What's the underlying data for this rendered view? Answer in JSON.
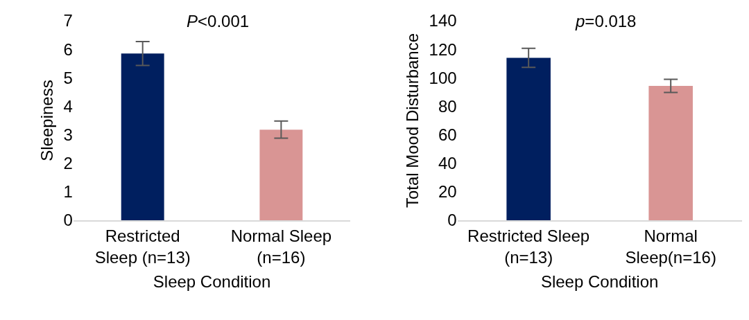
{
  "chart_data": [
    {
      "type": "bar",
      "xlabel": "Sleep Condition",
      "ylabel": "Sleepiness",
      "annotations": [
        "P<0.001"
      ],
      "categories": [
        "Restricted\nSleep (n=13)",
        "Normal Sleep\n(n=16)"
      ],
      "values": [
        5.85,
        3.18
      ],
      "colors": [
        "#001f5f",
        "#d99594"
      ],
      "errors": [
        0.42,
        0.3
      ],
      "ylim": [
        0,
        7
      ],
      "yticks": [
        0,
        1,
        2,
        3,
        4,
        5,
        6,
        7
      ],
      "grid": false
    },
    {
      "type": "bar",
      "xlabel": "Sleep Condition",
      "ylabel": "Total Mood Disturbance",
      "annotations": [
        "p=0.018"
      ],
      "categories": [
        "Restricted Sleep\n(n=13)",
        "Normal\nSleep(n=16)"
      ],
      "values": [
        114,
        94.3
      ],
      "colors": [
        "#001f5f",
        "#d99594"
      ],
      "errors": [
        6.7,
        4.6
      ],
      "ylim": [
        0,
        140
      ],
      "yticks": [
        0,
        20,
        40,
        60,
        80,
        100,
        120,
        140
      ],
      "grid": false
    }
  ]
}
